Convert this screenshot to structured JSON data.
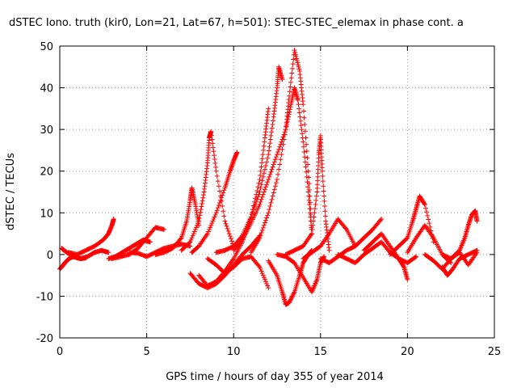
{
  "chart_data": {
    "type": "scatter",
    "title": "dSTEC Iono. truth (kir0, Lon=21, Lat=67, h=501): STEC-STEC_elemax in phase cont. a",
    "xlabel": "GPS time / hours of day 355 of year 2014",
    "ylabel": "dSTEC  / TECUs",
    "xlim": [
      0,
      25
    ],
    "ylim": [
      -20,
      50
    ],
    "xticks": [
      "0",
      "5",
      "10",
      "15",
      "20",
      "25"
    ],
    "yticks": [
      "-20",
      "-10",
      "0",
      "10",
      "20",
      "30",
      "40",
      "50"
    ],
    "grid": true,
    "marker": "+",
    "color": "#ff0000",
    "series": [
      {
        "x": [
          0.0,
          0.2,
          0.4,
          0.6,
          0.8,
          1.0,
          1.2,
          1.5
        ],
        "y": [
          -3.5,
          -2.5,
          -1.5,
          -0.8,
          -0.5,
          -0.8,
          -1.0,
          -0.8
        ]
      },
      {
        "x": [
          0.1,
          0.4,
          0.8,
          1.2,
          1.6,
          2.0,
          2.4,
          2.8
        ],
        "y": [
          1.5,
          0.5,
          -0.5,
          -1.0,
          -0.5,
          0.5,
          1.0,
          0.5
        ]
      },
      {
        "x": [
          0.5,
          1.0,
          1.5,
          2.0,
          2.5,
          2.8,
          3.0,
          3.1
        ],
        "y": [
          0.5,
          0.0,
          1.0,
          2.0,
          3.5,
          5.0,
          7.0,
          8.5
        ]
      },
      {
        "x": [
          2.8,
          3.2,
          3.6,
          4.0,
          4.4,
          4.8,
          5.2
        ],
        "y": [
          -1.0,
          -0.5,
          0.5,
          1.5,
          2.5,
          3.5,
          3.0
        ]
      },
      {
        "x": [
          3.0,
          3.5,
          4.0,
          4.5,
          5.0,
          5.5,
          6.0
        ],
        "y": [
          -1.0,
          -0.5,
          0.0,
          1.5,
          4.0,
          6.5,
          6.0
        ]
      },
      {
        "x": [
          4.0,
          4.5,
          5.0,
          5.5,
          6.0,
          6.5,
          7.0,
          7.5
        ],
        "y": [
          0.5,
          0.3,
          -0.5,
          0.5,
          1.5,
          2.0,
          2.5,
          2.0
        ]
      },
      {
        "x": [
          5.5,
          6.0,
          6.5,
          7.0,
          7.3,
          7.5,
          7.6,
          7.8,
          8.0
        ],
        "y": [
          0.0,
          0.5,
          1.5,
          4.0,
          8.0,
          13.0,
          16.0,
          12.0,
          7.0
        ]
      },
      {
        "x": [
          7.0,
          7.5,
          8.0,
          8.3,
          8.5,
          8.6,
          8.7,
          9.0,
          9.5,
          10.0
        ],
        "y": [
          1.0,
          3.0,
          8.0,
          15.0,
          22.0,
          28.0,
          29.5,
          20.0,
          8.0,
          2.0
        ]
      },
      {
        "x": [
          7.6,
          8.0,
          8.5,
          9.0,
          9.5,
          9.8,
          10.0,
          10.2
        ],
        "y": [
          0.5,
          2.0,
          5.0,
          10.0,
          16.0,
          20.0,
          22.5,
          24.5
        ]
      },
      {
        "x": [
          7.5,
          8.0,
          8.5,
          9.0,
          9.5,
          10.0,
          10.5,
          11.0,
          11.5
        ],
        "y": [
          -4.5,
          -7.0,
          -8.0,
          -7.0,
          -5.0,
          -2.5,
          0.0,
          2.0,
          4.5
        ]
      },
      {
        "x": [
          8.0,
          8.5,
          9.0,
          9.5,
          10.0,
          10.5,
          11.0,
          11.5,
          11.8,
          12.0
        ],
        "y": [
          -5.0,
          -7.5,
          -6.5,
          -4.0,
          -1.0,
          3.0,
          9.0,
          18.0,
          28.0,
          35.0
        ]
      },
      {
        "x": [
          9.0,
          9.5,
          10.0,
          10.5,
          11.0,
          11.5,
          12.0,
          12.3,
          12.5,
          12.6,
          12.8
        ],
        "y": [
          0.5,
          1.0,
          2.0,
          4.5,
          9.0,
          15.0,
          24.0,
          33.0,
          40.0,
          45.0,
          42.0
        ]
      },
      {
        "x": [
          8.5,
          9.0,
          9.5,
          10.0,
          10.5,
          11.0,
          11.5,
          12.0
        ],
        "y": [
          -1.0,
          -2.5,
          -4.5,
          -3.0,
          -1.0,
          -0.5,
          -3.0,
          -8.0
        ]
      },
      {
        "x": [
          10.0,
          10.5,
          11.0,
          11.5,
          12.0,
          12.5,
          13.0,
          13.3,
          13.5,
          13.7,
          14.0,
          14.3,
          14.5
        ],
        "y": [
          1.0,
          3.5,
          7.5,
          12.0,
          18.0,
          24.0,
          30.0,
          36.0,
          40.0,
          37.0,
          27.0,
          15.0,
          5.0
        ]
      },
      {
        "x": [
          11.0,
          11.5,
          12.0,
          12.5,
          13.0,
          13.2,
          13.5,
          13.8,
          14.0,
          14.3,
          14.5
        ],
        "y": [
          0.5,
          4.0,
          10.0,
          18.0,
          30.0,
          38.0,
          49.0,
          44.0,
          36.0,
          20.0,
          5.0
        ]
      },
      {
        "x": [
          12.0,
          12.5,
          12.8,
          13.0,
          13.2,
          13.5,
          13.8,
          14.0,
          14.3,
          14.5
        ],
        "y": [
          -1.5,
          -5.0,
          -9.0,
          -12.0,
          -11.5,
          -9.0,
          -5.0,
          -2.0,
          0.0,
          1.0
        ]
      },
      {
        "x": [
          12.5,
          13.0,
          13.5,
          14.0,
          14.5,
          14.8,
          15.0,
          15.2
        ],
        "y": [
          0.0,
          -0.5,
          -2.0,
          -5.5,
          -9.0,
          -6.0,
          -2.0,
          -0.5
        ]
      },
      {
        "x": [
          13.0,
          13.5,
          14.0,
          14.5,
          14.8,
          14.9,
          15.0,
          15.1,
          15.3,
          15.5
        ],
        "y": [
          0.0,
          1.0,
          2.0,
          5.0,
          15.0,
          24.0,
          28.5,
          20.0,
          8.0,
          1.0
        ]
      },
      {
        "x": [
          14.0,
          14.5,
          15.0,
          15.5,
          16.0,
          16.5,
          17.0
        ],
        "y": [
          -1.0,
          0.5,
          2.0,
          5.0,
          8.5,
          6.0,
          2.0
        ]
      },
      {
        "x": [
          15.0,
          15.5,
          16.0,
          16.5,
          17.0,
          17.5,
          18.0,
          18.5
        ],
        "y": [
          -1.0,
          -2.0,
          -0.5,
          1.0,
          2.0,
          4.0,
          6.0,
          8.5
        ]
      },
      {
        "x": [
          16.0,
          16.5,
          17.0,
          17.5,
          18.0,
          18.5,
          19.0,
          19.5,
          20.0,
          20.5
        ],
        "y": [
          0.0,
          -1.0,
          -2.0,
          0.0,
          1.5,
          3.0,
          0.5,
          -1.0,
          -2.0,
          -0.5
        ]
      },
      {
        "x": [
          17.5,
          18.0,
          18.5,
          19.0,
          19.5,
          19.8,
          20.0
        ],
        "y": [
          1.0,
          3.0,
          5.0,
          2.0,
          -1.0,
          -3.0,
          -6.0
        ]
      },
      {
        "x": [
          19.0,
          19.5,
          20.0,
          20.3,
          20.5,
          20.7,
          21.0,
          21.5
        ],
        "y": [
          0.0,
          2.0,
          4.0,
          8.0,
          11.0,
          14.0,
          12.0,
          3.0
        ]
      },
      {
        "x": [
          20.0,
          20.5,
          21.0,
          21.5,
          22.0,
          22.5
        ],
        "y": [
          0.5,
          4.0,
          7.0,
          4.0,
          0.0,
          -2.0
        ]
      },
      {
        "x": [
          21.0,
          21.5,
          22.0,
          22.5,
          23.0,
          23.5,
          24.0
        ],
        "y": [
          0.0,
          -1.5,
          -3.5,
          -1.0,
          0.5,
          -2.5,
          0.5
        ]
      },
      {
        "x": [
          22.0,
          22.5,
          23.0,
          23.3,
          23.5,
          23.7,
          23.9,
          24.0
        ],
        "y": [
          0.0,
          -1.0,
          1.0,
          4.0,
          7.0,
          9.5,
          10.5,
          8.0
        ]
      },
      {
        "x": [
          22.0,
          22.3,
          22.6,
          23.0,
          23.5,
          24.0
        ],
        "y": [
          -3.0,
          -5.0,
          -3.5,
          -1.0,
          0.0,
          1.0
        ]
      }
    ]
  }
}
